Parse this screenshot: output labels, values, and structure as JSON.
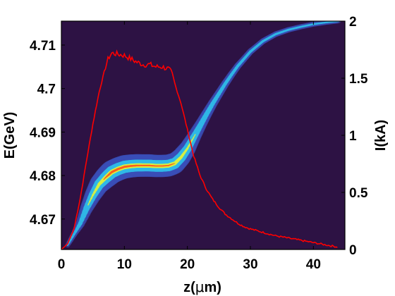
{
  "chart_data": {
    "type": "scatter",
    "title": "",
    "xlabel_main": "z(",
    "xlabel_greek": "μ",
    "xlabel_tail": "m)",
    "ylabel_left": "E(GeV)",
    "ylabel_right": "I(kA)",
    "xlim": [
      0,
      45
    ],
    "ylim_left": [
      4.663,
      4.7155
    ],
    "ylim_right": [
      0,
      2
    ],
    "x_ticks": [
      0,
      10,
      20,
      30,
      40
    ],
    "y_left_ticks": [
      4.67,
      4.68,
      4.69,
      4.7,
      4.71
    ],
    "y_right_ticks": [
      0,
      0.5,
      1,
      1.5,
      2
    ],
    "x_tick_labels": [
      "0",
      "10",
      "20",
      "30",
      "40"
    ],
    "y_left_tick_labels": [
      "4.67",
      "4.68",
      "4.69",
      "4.7",
      "4.71"
    ],
    "y_right_tick_labels": [
      "0",
      "0.5",
      "1",
      "1.5",
      "2"
    ],
    "grid": false,
    "colors": {
      "background": "#2d1244",
      "current_line": "#ff0000",
      "density_low": "#3b4fb8",
      "density_mid": "#2fb8e6",
      "density_high": "#d8f040",
      "density_peak": "#ff5a1a"
    },
    "series": [
      {
        "kind": "current",
        "axis": "right",
        "x": [
          0,
          1,
          2,
          3,
          4,
          5,
          6,
          7,
          7.5,
          8,
          9,
          10,
          11,
          12,
          13,
          14,
          15,
          16,
          17,
          17.5,
          18,
          19,
          20,
          21,
          22,
          23,
          24,
          25,
          26,
          27,
          28,
          29,
          30,
          32,
          34,
          36,
          38,
          40,
          42,
          44
        ],
        "y": [
          0,
          0.05,
          0.18,
          0.45,
          0.78,
          1.1,
          1.38,
          1.6,
          1.68,
          1.72,
          1.71,
          1.7,
          1.67,
          1.64,
          1.62,
          1.62,
          1.6,
          1.6,
          1.58,
          1.55,
          1.45,
          1.28,
          1.05,
          0.82,
          0.65,
          0.53,
          0.44,
          0.37,
          0.31,
          0.27,
          0.23,
          0.2,
          0.18,
          0.15,
          0.12,
          0.1,
          0.08,
          0.06,
          0.04,
          0.02
        ]
      },
      {
        "kind": "phase_space_centroid",
        "axis": "left",
        "x": [
          1,
          2,
          3,
          4,
          5,
          6,
          7,
          8,
          9,
          10,
          11,
          12,
          13,
          14,
          15,
          16,
          17,
          18,
          19,
          20,
          21,
          22,
          23,
          24,
          25,
          26,
          27,
          28,
          30,
          32,
          34,
          36,
          38,
          40,
          42,
          44
        ],
        "y": [
          4.664,
          4.6665,
          4.669,
          4.6725,
          4.6755,
          4.678,
          4.6795,
          4.6808,
          4.6815,
          4.682,
          4.6822,
          4.6823,
          4.6823,
          4.6823,
          4.6822,
          4.6822,
          4.6823,
          4.6828,
          4.6842,
          4.6862,
          4.6888,
          4.6914,
          4.694,
          4.6965,
          4.6988,
          4.7011,
          4.7032,
          4.7052,
          4.7085,
          4.7109,
          4.7125,
          4.7135,
          4.7142,
          4.7148,
          4.7152,
          4.7155
        ]
      }
    ]
  }
}
